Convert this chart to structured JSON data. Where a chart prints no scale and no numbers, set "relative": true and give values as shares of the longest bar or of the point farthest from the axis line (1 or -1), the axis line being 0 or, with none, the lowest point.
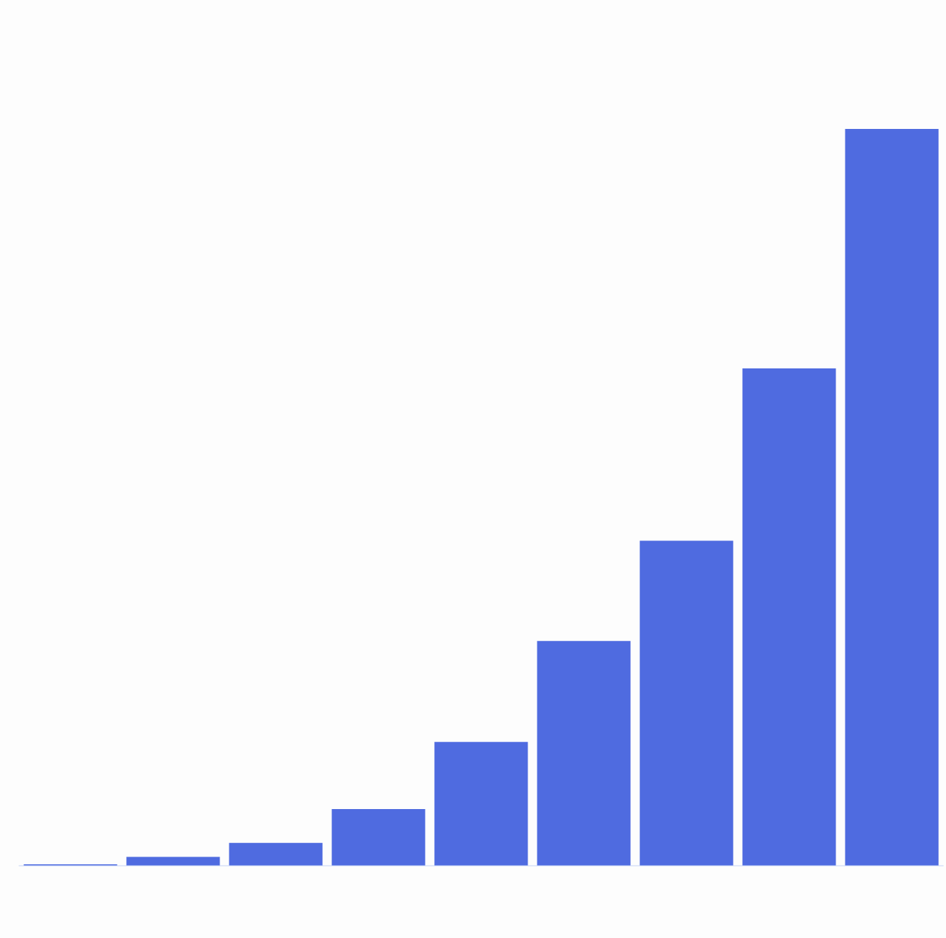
{
  "chart_data": {
    "type": "bar",
    "relative": true,
    "color": "#4f6be0",
    "categories": [
      null,
      null,
      null,
      null,
      null,
      null,
      null,
      null,
      null
    ],
    "values": [
      0.002,
      0.012,
      0.031,
      0.077,
      0.168,
      0.305,
      0.441,
      0.675,
      1
    ]
  }
}
